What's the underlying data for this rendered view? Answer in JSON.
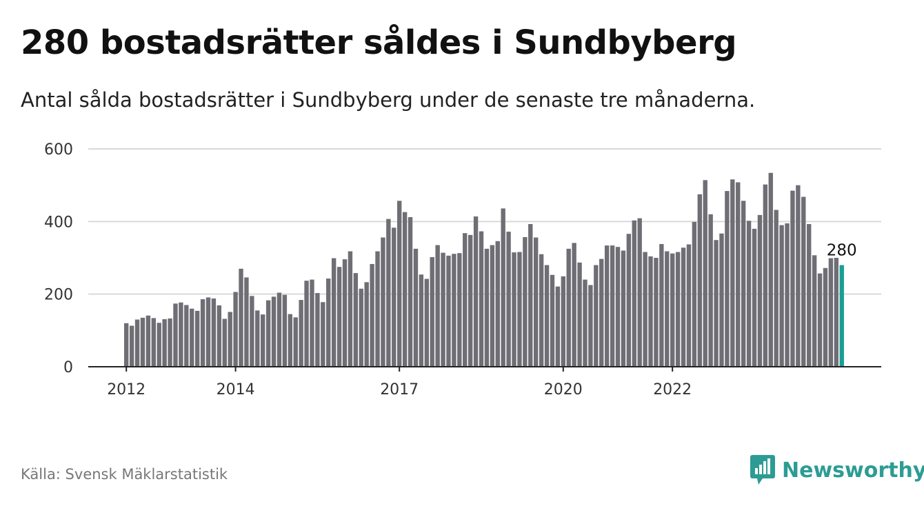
{
  "header": {
    "title": "280 bostadsrätter såldes i Sundbyberg",
    "subtitle": "Antal sålda bostadsrätter i Sundbyberg under de senaste tre månaderna."
  },
  "footer": {
    "source": "Källa: Svensk Mäklarstatistik",
    "brand": "Newsworthy",
    "brand_icon": "bar-chart-speech-bubble-icon"
  },
  "colors": {
    "bar": "#6f6e75",
    "highlight": "#1a9e92",
    "grid": "#d9d9d9",
    "axis": "#222222",
    "brand": "#2c9c94"
  },
  "chart_data": {
    "type": "bar",
    "title": "",
    "xlabel": "",
    "ylabel": "",
    "ylim": [
      0,
      600
    ],
    "yticks": [
      0,
      200,
      400,
      600
    ],
    "grid": true,
    "x_tick_labels": [
      {
        "label": "2012",
        "index": 0
      },
      {
        "label": "2014",
        "index": 20
      },
      {
        "label": "2017",
        "index": 50
      },
      {
        "label": "2020",
        "index": 80
      },
      {
        "label": "2022",
        "index": 100
      }
    ],
    "highlight_label": "280",
    "values": [
      120,
      113,
      130,
      135,
      141,
      134,
      121,
      131,
      133,
      174,
      177,
      170,
      160,
      154,
      186,
      191,
      188,
      169,
      132,
      151,
      206,
      270,
      246,
      195,
      155,
      144,
      183,
      193,
      204,
      198,
      145,
      136,
      184,
      237,
      240,
      203,
      178,
      243,
      299,
      275,
      296,
      318,
      258,
      215,
      233,
      283,
      318,
      356,
      407,
      383,
      457,
      426,
      412,
      325,
      254,
      242,
      302,
      335,
      314,
      306,
      311,
      313,
      368,
      363,
      414,
      373,
      325,
      335,
      346,
      436,
      372,
      315,
      316,
      357,
      393,
      356,
      310,
      280,
      253,
      221,
      249,
      325,
      341,
      287,
      240,
      225,
      280,
      297,
      334,
      334,
      330,
      320,
      366,
      403,
      409,
      316,
      304,
      300,
      338,
      318,
      312,
      316,
      328,
      337,
      399,
      475,
      514,
      420,
      349,
      367,
      484,
      516,
      508,
      457,
      402,
      380,
      418,
      502,
      534,
      432,
      390,
      395,
      485,
      500,
      468,
      393,
      307,
      257,
      272,
      299,
      300,
      280
    ]
  }
}
